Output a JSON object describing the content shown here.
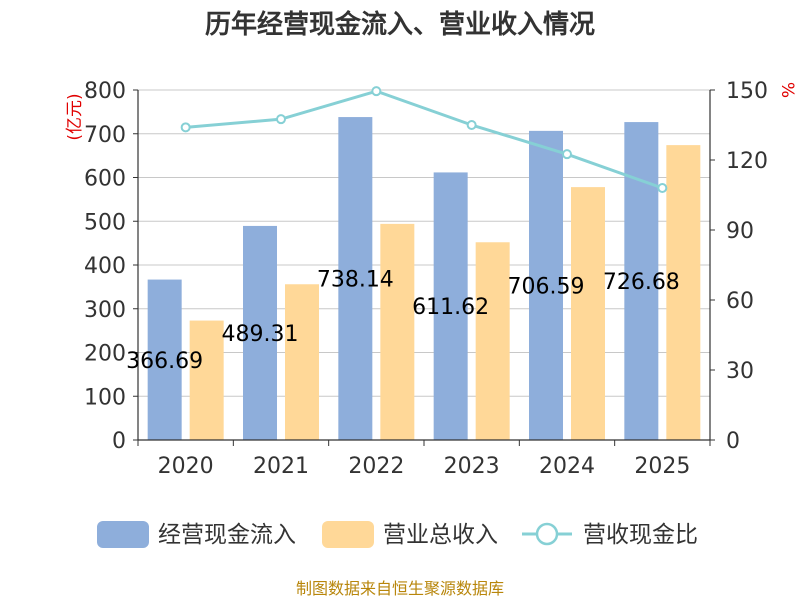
{
  "chart_data": {
    "type": "bar",
    "title": "历年经营现金流入、营业收入情况",
    "categories": [
      "2020",
      "2021",
      "2022",
      "2023",
      "2024",
      "2025"
    ],
    "series": [
      {
        "name": "经营现金流入",
        "axis": "left",
        "color": "#8eaedb",
        "values": [
          366.69,
          489.31,
          738.14,
          611.62,
          706.59,
          726.68
        ]
      },
      {
        "name": "营业总收入",
        "axis": "left",
        "color": "#ffd898",
        "values": [
          273,
          356,
          494,
          452,
          578,
          674
        ]
      },
      {
        "name": "营收现金比",
        "axis": "right",
        "type": "line",
        "color": "#86d0d5",
        "values": [
          134,
          137.5,
          149.5,
          135,
          122.5,
          108
        ]
      }
    ],
    "data_labels": [
      "366.69",
      "489.31",
      "738.14",
      "611.62",
      "706.59",
      "726.68"
    ],
    "ylabel_left": "(亿元)",
    "ylabel_right": "%",
    "ylim_left": [
      0,
      800
    ],
    "ylim_right": [
      0,
      150
    ],
    "yticks_left": [
      0,
      100,
      200,
      300,
      400,
      500,
      600,
      700,
      800
    ],
    "yticks_right": [
      0,
      30,
      60,
      90,
      120,
      150
    ],
    "grid": true,
    "legend_position": "bottom"
  },
  "source_text": "制图数据来自恒生聚源数据库"
}
